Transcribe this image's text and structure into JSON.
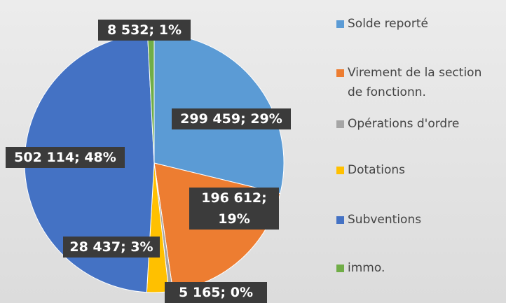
{
  "chart_data": {
    "type": "pie",
    "categories": [
      "Solde reporté",
      "Virement de la section de fonctionn.",
      "Opérations d'ordre",
      "Dotations",
      "Subventions",
      "immo."
    ],
    "values": [
      299459,
      196612,
      5165,
      28437,
      502114,
      8532
    ],
    "value_labels": [
      "299 459; 29%",
      "196 612; 19%",
      "5 165; 0%",
      "28 437; 3%",
      "502 114; 48%",
      "8 532; 1%"
    ],
    "colors": [
      "#5b9bd5",
      "#ed7d31",
      "#a5a5a5",
      "#ffc000",
      "#4472c4",
      "#70ad47"
    ],
    "legend": "right"
  }
}
